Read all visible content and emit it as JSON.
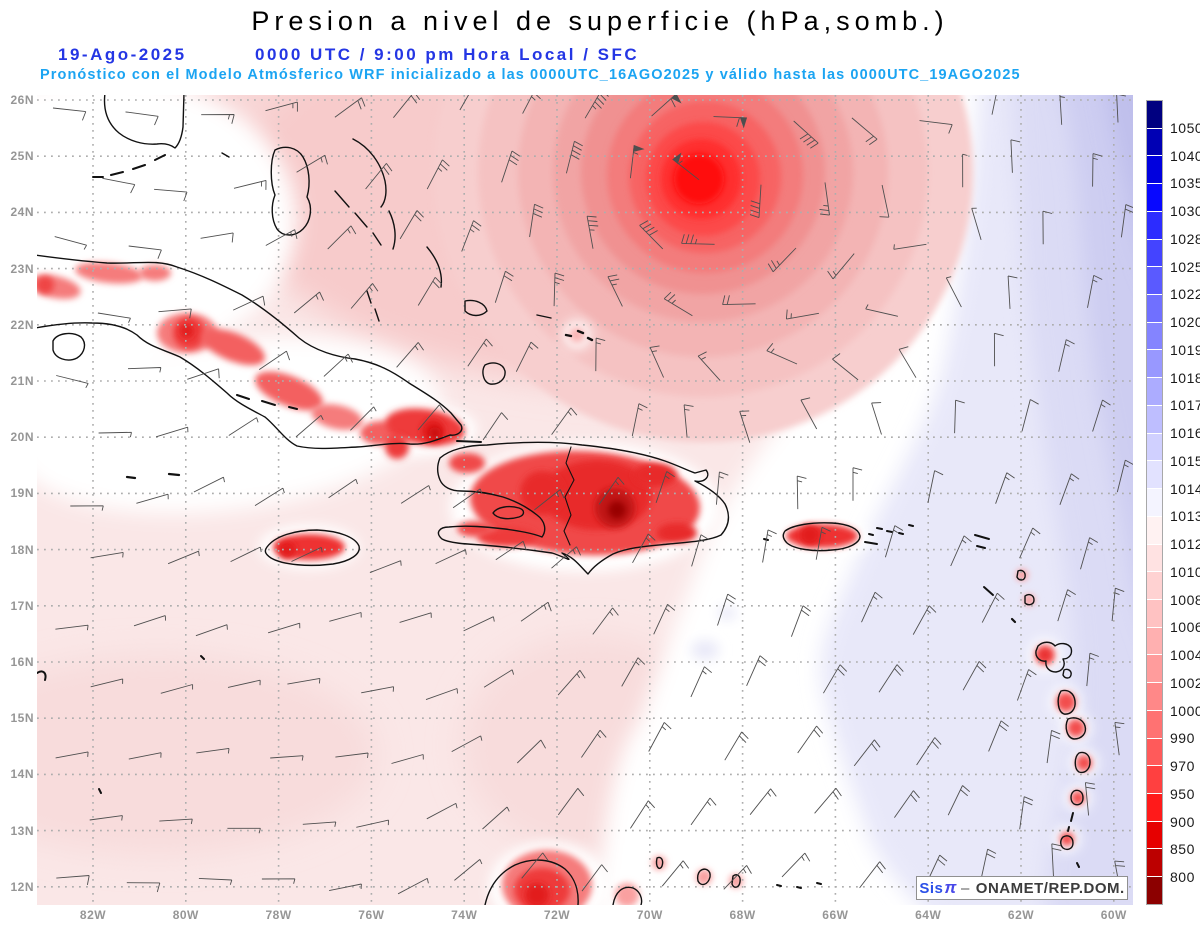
{
  "header": {
    "title": "Presion a nivel de superficie (hPa,somb.)",
    "datetime_left": "19-Ago-2025",
    "datetime_right": "0000 UTC / 9:00 pm Hora Local / SFC",
    "forecast_line": "Pronóstico con el Modelo Atmósferico WRF inicializado a las 0000UTC_16AGO2025 y válido hasta las  0000UTC_19AGO2025"
  },
  "attribution": {
    "system": "Sis",
    "pi": "π",
    "separator": "–",
    "org": "ONAMET/REP.DOM."
  },
  "axes": {
    "lat_labels": [
      "26N",
      "25N",
      "24N",
      "23N",
      "22N",
      "21N",
      "20N",
      "19N",
      "18N",
      "17N",
      "16N",
      "15N",
      "14N",
      "13N",
      "12N"
    ],
    "lon_labels": [
      "82W",
      "80W",
      "78W",
      "76W",
      "74W",
      "72W",
      "70W",
      "68W",
      "66W",
      "64W",
      "62W",
      "60W"
    ]
  },
  "colorbar": {
    "unit": "hPa",
    "labels": [
      "1050",
      "1040",
      "1035",
      "1030",
      "1028",
      "1025",
      "1022",
      "1020",
      "1019",
      "1018",
      "1017",
      "1016",
      "1015",
      "1014",
      "1013",
      "1012",
      "1010",
      "1008",
      "1006",
      "1004",
      "1002",
      "1000",
      "990",
      "970",
      "950",
      "900",
      "850",
      "800"
    ],
    "colors": [
      "#000080",
      "#0000B4",
      "#0000DE",
      "#0808FF",
      "#2C2CFF",
      "#4444FF",
      "#5A5AFF",
      "#7070FF",
      "#8484FF",
      "#9898FF",
      "#ACACFF",
      "#BEBEFF",
      "#D0D0FF",
      "#E2E2FF",
      "#F4F4FF",
      "#FFF2F2",
      "#FFE2E2",
      "#FFD2D2",
      "#FFC2C2",
      "#FFB0B0",
      "#FF9C9C",
      "#FF8888",
      "#FF7272",
      "#FF5A5A",
      "#FF4040",
      "#FF1A1A",
      "#E60000",
      "#BC0000",
      "#8C0000"
    ]
  },
  "colors": {
    "title": "#000000",
    "datetime_text": "#2436E4",
    "forecast_text": "#1BA4F2",
    "axis_labels": "#969696",
    "coastline": "#111111",
    "wind_barbs": "#4F4F4F",
    "grid_dots": "#ADADAD",
    "low_core_red": "#FF0C0C",
    "high_lavender": "#C9C9F0"
  },
  "chart_data": {
    "type": "heatmap",
    "field": "sea_level_pressure",
    "unit": "hPa",
    "title": "Presion a nivel de superficie (hPa,somb.)",
    "region": {
      "lon_west_deg": 83.2,
      "lon_east_deg": 59.6,
      "lat_south_deg": 11.7,
      "lat_north_deg": 26.1
    },
    "lon_ticks_degW": [
      82,
      80,
      78,
      76,
      74,
      72,
      70,
      68,
      66,
      64,
      62,
      60
    ],
    "lat_ticks_degN": [
      26,
      25,
      24,
      23,
      22,
      21,
      20,
      19,
      18,
      17,
      16,
      15,
      14,
      13,
      12
    ],
    "pressure_levels_hpa": [
      800,
      850,
      900,
      950,
      970,
      990,
      1000,
      1002,
      1004,
      1006,
      1008,
      1010,
      1012,
      1013,
      1014,
      1015,
      1016,
      1017,
      1018,
      1019,
      1020,
      1022,
      1025,
      1028,
      1030,
      1035,
      1040,
      1050
    ],
    "features": [
      {
        "name": "closed-low-tropical-cyclone",
        "approx_lon_degW": 69.0,
        "approx_lat_degN": 24.8,
        "shading": "concentric red rings, core below ~1000 hPa"
      },
      {
        "name": "higher-pressure-area",
        "location": "eastern Atlantic edge of domain, ~1015-1018 hPa",
        "shading": "blue/lavender bands deepening eastward"
      },
      {
        "name": "terrain-lows-over-land",
        "location": "Cuba, Jamaica, Hispaniola, Puerto Rico, Lesser Antilles, Guajira peninsula",
        "shading": "red blobs over islands"
      },
      {
        "name": "neutral-band-1013-1014",
        "location": "diagonal white band separating pink and blue fields"
      }
    ],
    "overlays": [
      "wind barbs on ~67px grid",
      "black coastlines",
      "gray dotted lat/lon grid"
    ],
    "grid": "dotted",
    "legend_position": "right vertical colorbar"
  }
}
